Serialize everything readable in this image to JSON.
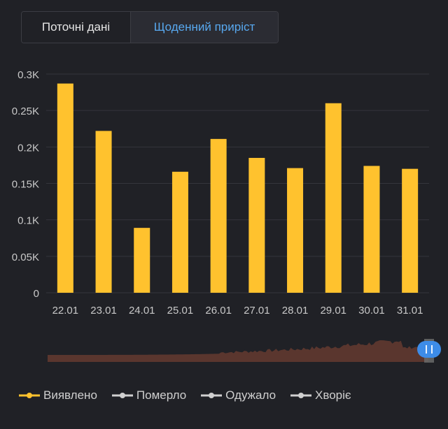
{
  "tabs": {
    "current": "Поточні дані",
    "daily": "Щоденний приріст"
  },
  "colors": {
    "bar": "#ffc22e",
    "grid": "#34353c",
    "axis_text": "#c9c9c9",
    "navigator_fill": "#5a362e",
    "navigator_handle": "#3d8ce8",
    "legend_active": "#ffc22e",
    "legend_inactive": "#d0d0d0"
  },
  "chart_data": {
    "type": "bar",
    "categories": [
      "22.01",
      "23.01",
      "24.01",
      "25.01",
      "26.01",
      "27.01",
      "28.01",
      "29.01",
      "30.01",
      "31.01"
    ],
    "series": [
      {
        "name": "Виявлено",
        "values": [
          287,
          222,
          89,
          166,
          211,
          185,
          171,
          260,
          174,
          170
        ]
      }
    ],
    "ylim": [
      0,
      300
    ],
    "yticks": [
      0,
      50,
      100,
      150,
      200,
      250,
      300
    ],
    "ytick_labels": [
      "0",
      "0.05K",
      "0.1K",
      "0.15K",
      "0.2K",
      "0.25K",
      "0.3K"
    ],
    "grid": true
  },
  "legend": [
    {
      "label": "Виявлено",
      "active": true
    },
    {
      "label": "Померло",
      "active": false
    },
    {
      "label": "Одужало",
      "active": false
    },
    {
      "label": "Хворіє",
      "active": false
    }
  ]
}
